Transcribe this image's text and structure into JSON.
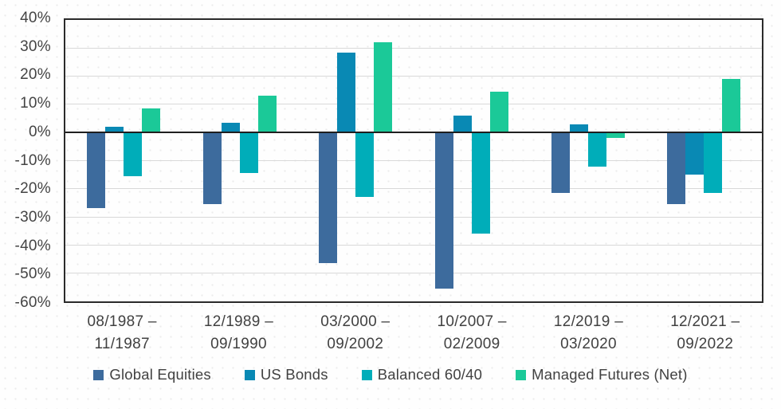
{
  "chart_data": {
    "type": "bar",
    "title": "",
    "xlabel": "",
    "ylabel": "",
    "ylim": [
      -60,
      40
    ],
    "grid": true,
    "legend_position": "bottom",
    "yticks": [
      {
        "value": 40,
        "label": "40%"
      },
      {
        "value": 30,
        "label": "30%"
      },
      {
        "value": 20,
        "label": "20%"
      },
      {
        "value": 10,
        "label": "10%"
      },
      {
        "value": 0,
        "label": "0%"
      },
      {
        "value": -10,
        "label": "-10%"
      },
      {
        "value": -20,
        "label": "-20%"
      },
      {
        "value": -30,
        "label": "-30%"
      },
      {
        "value": -40,
        "label": "-40%"
      },
      {
        "value": -50,
        "label": "-50%"
      },
      {
        "value": -60,
        "label": "-60%"
      }
    ],
    "categories": [
      {
        "line1": "08/1987 –",
        "line2": "11/1987"
      },
      {
        "line1": "12/1989 –",
        "line2": "09/1990"
      },
      {
        "line1": "03/2000 –",
        "line2": "09/2002"
      },
      {
        "line1": "10/2007 –",
        "line2": "02/2009"
      },
      {
        "line1": "12/2019 –",
        "line2": "03/2020"
      },
      {
        "line1": "12/2021 –",
        "line2": "09/2022"
      }
    ],
    "series": [
      {
        "name": "Global Equities",
        "color": "#3D6B9D",
        "values": [
          -27,
          -25.5,
          -46.5,
          -55.5,
          -21.5,
          -25.5
        ]
      },
      {
        "name": "US Bonds",
        "color": "#0989B4",
        "values": [
          2,
          3.5,
          28.5,
          6,
          3,
          -15
        ]
      },
      {
        "name": "Balanced 60/40",
        "color": "#00ADB9",
        "values": [
          -15.5,
          -14.5,
          -23,
          -36,
          -12,
          -21.5
        ]
      },
      {
        "name": "Managed Futures (Net)",
        "color": "#1BC998",
        "values": [
          8.5,
          13,
          32,
          14.5,
          -2,
          19
        ]
      }
    ]
  }
}
